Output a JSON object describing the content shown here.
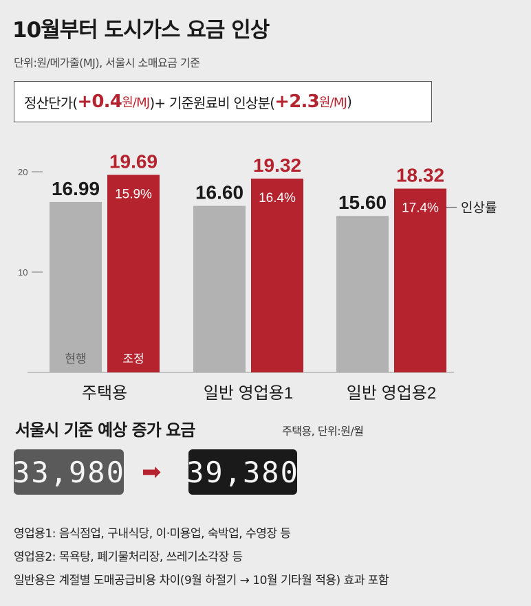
{
  "header": {
    "title": "10월부터 도시가스 요금 인상",
    "unit_note": "단위:원/메가줄(MJ), 서울시 소매요금 기준"
  },
  "info_box": {
    "part1": "정산단가(",
    "value1_big": "+0.4",
    "value1_unit": "원/MJ",
    "part2": ")+ 기준원료비 인상분(",
    "value2_big": "+2.3",
    "value2_unit": "원/MJ",
    "part3": ")"
  },
  "colors": {
    "current": "#b2b2b2",
    "adjusted": "#b5232f",
    "background": "#ececec"
  },
  "chart_data": {
    "type": "bar",
    "categories": [
      "주택용",
      "일반 영업용1",
      "일반 영업용2"
    ],
    "series": [
      {
        "name": "현행",
        "values": [
          16.99,
          16.6,
          15.6
        ]
      },
      {
        "name": "조정",
        "values": [
          19.69,
          19.32,
          18.32
        ]
      }
    ],
    "value_labels": {
      "current": [
        "16.99",
        "16.60",
        "15.60"
      ],
      "adjusted": [
        "19.69",
        "19.32",
        "18.32"
      ]
    },
    "increase_rates": [
      "15.9%",
      "16.4%",
      "17.4%"
    ],
    "increase_rate_label": "인상률",
    "y_ticks": [
      "10",
      "20"
    ],
    "ylim": [
      0,
      20
    ],
    "legend_position": "inside-bars"
  },
  "estimate": {
    "title": "서울시 기준 예상 증가 요금",
    "subtitle": "주택용, 단위:원/월",
    "current_value": "33,980",
    "arrow": "➡",
    "new_value": "39,380"
  },
  "notes": [
    "영업용1:  음식점업, 구내식당, 이·미용업, 숙박업, 수영장 등",
    "영업용2:  목욕탕, 폐기물처리장, 쓰레기소각장 등",
    "일반용은 계절별 도매공급비용 차이(9월 하절기 → 10월 기타월 적용) 효과 포함"
  ]
}
